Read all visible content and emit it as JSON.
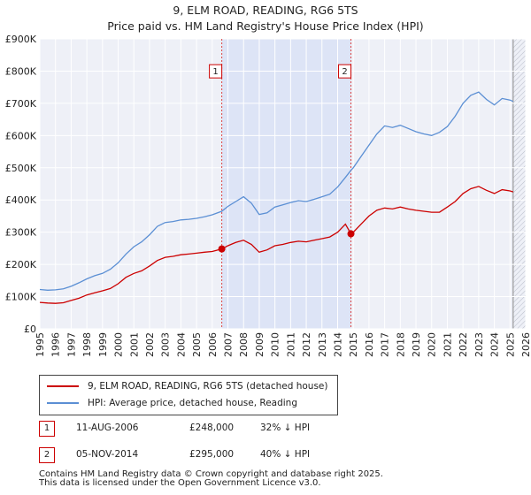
{
  "title_line1": "9, ELM ROAD, READING, RG6 5TS",
  "title_line2": "Price paid vs. HM Land Registry's House Price Index (HPI)",
  "chart_data": {
    "type": "line",
    "xlim": [
      1995,
      2026
    ],
    "ylim": [
      0,
      900000
    ],
    "y_ticks": [
      0,
      100000,
      200000,
      300000,
      400000,
      500000,
      600000,
      700000,
      800000,
      900000
    ],
    "y_tick_labels": [
      "£0",
      "£100K",
      "£200K",
      "£300K",
      "£400K",
      "£500K",
      "£600K",
      "£700K",
      "£800K",
      "£900K"
    ],
    "x_ticks": [
      1995,
      1996,
      1997,
      1998,
      1999,
      2000,
      2001,
      2002,
      2003,
      2004,
      2005,
      2006,
      2007,
      2008,
      2009,
      2010,
      2011,
      2012,
      2013,
      2014,
      2015,
      2016,
      2017,
      2018,
      2019,
      2020,
      2021,
      2022,
      2023,
      2024,
      2025,
      2026
    ],
    "x_tick_labels": [
      "1995",
      "1996",
      "1997",
      "1998",
      "1999",
      "2000",
      "2001",
      "2002",
      "2003",
      "2004",
      "2005",
      "2006",
      "2007",
      "2008",
      "2009",
      "2010",
      "2011",
      "2012",
      "2013",
      "2014",
      "2015",
      "2016",
      "2017",
      "2018",
      "2019",
      "2020",
      "2021",
      "2022",
      "2023",
      "2024",
      "2025",
      "2026"
    ],
    "shaded_region": [
      2006.61,
      2014.85
    ],
    "data_end_year": 2025.2,
    "series": [
      {
        "name": "9, ELM ROAD, READING, RG6 5TS (detached house)",
        "color": "#cc0000",
        "x": [
          1995.0,
          1995.5,
          1996.0,
          1996.5,
          1997.0,
          1997.5,
          1998.0,
          1998.5,
          1999.0,
          1999.5,
          2000.0,
          2000.5,
          2001.0,
          2001.5,
          2002.0,
          2002.5,
          2003.0,
          2003.5,
          2004.0,
          2004.5,
          2005.0,
          2005.5,
          2006.0,
          2006.61,
          2007.0,
          2007.5,
          2008.0,
          2008.5,
          2009.0,
          2009.5,
          2010.0,
          2010.5,
          2011.0,
          2011.5,
          2012.0,
          2012.5,
          2013.0,
          2013.5,
          2014.0,
          2014.5,
          2014.85,
          2015.0,
          2015.5,
          2016.0,
          2016.5,
          2017.0,
          2017.5,
          2018.0,
          2018.5,
          2019.0,
          2019.5,
          2020.0,
          2020.5,
          2021.0,
          2021.5,
          2022.0,
          2022.5,
          2023.0,
          2023.5,
          2024.0,
          2024.5,
          2025.0,
          2025.2
        ],
        "y": [
          82000,
          80000,
          79000,
          81000,
          88000,
          95000,
          105000,
          112000,
          118000,
          125000,
          140000,
          160000,
          172000,
          180000,
          195000,
          212000,
          222000,
          225000,
          230000,
          232000,
          235000,
          238000,
          240000,
          248000,
          258000,
          268000,
          275000,
          262000,
          238000,
          245000,
          258000,
          262000,
          268000,
          272000,
          270000,
          275000,
          280000,
          285000,
          300000,
          325000,
          295000,
          300000,
          325000,
          350000,
          368000,
          375000,
          372000,
          378000,
          372000,
          368000,
          365000,
          362000,
          362000,
          378000,
          395000,
          420000,
          435000,
          442000,
          430000,
          420000,
          432000,
          428000,
          425000
        ]
      },
      {
        "name": "HPI: Average price, detached house, Reading",
        "color": "#5b8fd4",
        "x": [
          1995.0,
          1995.5,
          1996.0,
          1996.5,
          1997.0,
          1997.5,
          1998.0,
          1998.5,
          1999.0,
          1999.5,
          2000.0,
          2000.5,
          2001.0,
          2001.5,
          2002.0,
          2002.5,
          2003.0,
          2003.5,
          2004.0,
          2004.5,
          2005.0,
          2005.5,
          2006.0,
          2006.61,
          2007.0,
          2007.5,
          2008.0,
          2008.5,
          2009.0,
          2009.5,
          2010.0,
          2010.5,
          2011.0,
          2011.5,
          2012.0,
          2012.5,
          2013.0,
          2013.5,
          2014.0,
          2014.5,
          2014.85,
          2015.0,
          2015.5,
          2016.0,
          2016.5,
          2017.0,
          2017.5,
          2018.0,
          2018.5,
          2019.0,
          2019.5,
          2020.0,
          2020.5,
          2021.0,
          2021.5,
          2022.0,
          2022.5,
          2023.0,
          2023.5,
          2024.0,
          2024.5,
          2025.0,
          2025.2
        ],
        "y": [
          122000,
          120000,
          121000,
          124000,
          132000,
          143000,
          155000,
          165000,
          172000,
          185000,
          205000,
          232000,
          255000,
          270000,
          292000,
          318000,
          330000,
          333000,
          338000,
          340000,
          343000,
          348000,
          354000,
          365000,
          380000,
          395000,
          410000,
          390000,
          355000,
          360000,
          378000,
          385000,
          392000,
          398000,
          395000,
          402000,
          410000,
          418000,
          440000,
          470000,
          492000,
          500000,
          535000,
          570000,
          605000,
          630000,
          625000,
          632000,
          622000,
          612000,
          605000,
          600000,
          610000,
          628000,
          660000,
          700000,
          725000,
          735000,
          712000,
          695000,
          715000,
          710000,
          706000
        ]
      }
    ],
    "transactions": [
      {
        "marker": "1",
        "year": 2006.61,
        "price": 248000,
        "date": "11-AUG-2006",
        "price_label": "£248,000",
        "hpi_note": "32% ↓ HPI"
      },
      {
        "marker": "2",
        "year": 2014.85,
        "price": 295000,
        "date": "05-NOV-2014",
        "price_label": "£295,000",
        "hpi_note": "40% ↓ HPI"
      }
    ]
  },
  "legend": {
    "property_label": "9, ELM ROAD, READING, RG6 5TS (detached house)",
    "hpi_label": "HPI: Average price, detached house, Reading",
    "property_color": "#cc0000",
    "hpi_color": "#5b8fd4"
  },
  "footer": {
    "line1": "Contains HM Land Registry data © Crown copyright and database right 2025.",
    "line2": "This data is licensed under the Open Government Licence v3.0."
  }
}
